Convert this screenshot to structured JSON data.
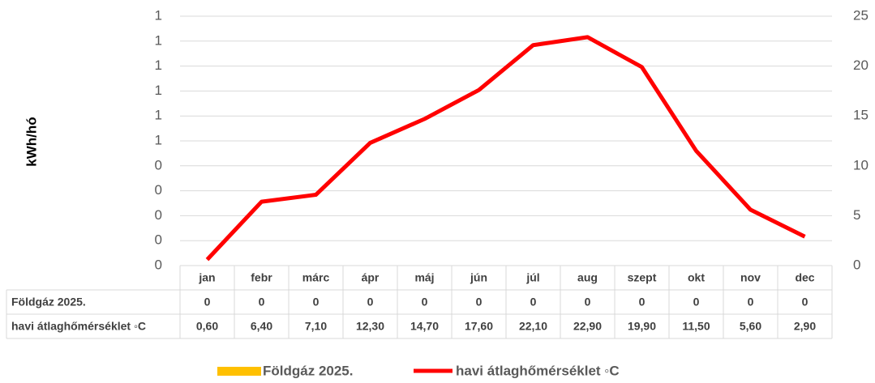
{
  "chart_data": {
    "type": "bar-line",
    "y_label": "kWh/hó",
    "categories": [
      "jan",
      "febr",
      "márc",
      "ápr",
      "máj",
      "jún",
      "júl",
      "aug",
      "szept",
      "okt",
      "nov",
      "dec"
    ],
    "series": [
      {
        "name": "Földgáz 2025.",
        "type": "bar",
        "color": "#ffc000",
        "values": [
          0,
          0,
          0,
          0,
          0,
          0,
          0,
          0,
          0,
          0,
          0,
          0
        ]
      },
      {
        "name": "havi átlaghőmérséklet ◦C",
        "type": "line",
        "axis": "y2",
        "color": "#ff0000",
        "values": [
          0.6,
          6.4,
          7.1,
          12.3,
          14.7,
          17.6,
          22.1,
          22.9,
          19.9,
          11.5,
          5.6,
          2.9
        ],
        "value_labels": [
          "0,60",
          "6,40",
          "7,10",
          "12,30",
          "14,70",
          "17,60",
          "22,10",
          "22,90",
          "19,90",
          "11,50",
          "5,60",
          "2,90"
        ]
      }
    ],
    "ylim": [
      0,
      1
    ],
    "yticks": [
      0,
      {
        "value": 0.1,
        "label": "0"
      },
      {
        "value": 0.2,
        "label": "0"
      },
      {
        "value": 0.3,
        "label": "0"
      },
      {
        "value": 0.4,
        "label": "0"
      },
      {
        "value": 0.5,
        "label": "1"
      },
      {
        "value": 0.6,
        "label": "1"
      },
      {
        "value": 0.7,
        "label": "1"
      },
      {
        "value": 0.8,
        "label": "1"
      },
      {
        "value": 0.9,
        "label": "1"
      },
      1
    ],
    "y2lim": [
      0,
      25
    ],
    "y2ticks": [
      0,
      5,
      10,
      15,
      20,
      25
    ],
    "grid": true,
    "legend": "bottom"
  }
}
